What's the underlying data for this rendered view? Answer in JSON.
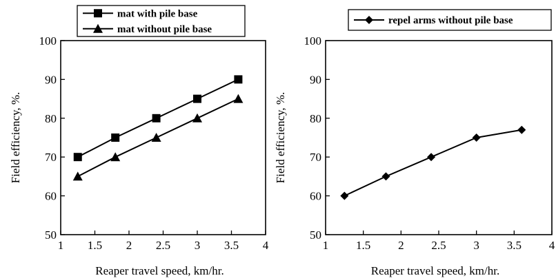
{
  "chart_data": [
    {
      "type": "line",
      "title": "",
      "xlabel": "Reaper travel speed, km/hr.",
      "ylabel": "Field efficiency, %.",
      "xlim": [
        1,
        4
      ],
      "ylim": [
        50,
        100
      ],
      "xticks": [
        1,
        1.5,
        2,
        2.5,
        3,
        3.5,
        4
      ],
      "yticks": [
        50,
        60,
        70,
        80,
        90,
        100
      ],
      "xtick_labels": [
        "1",
        "1.5",
        "2",
        "2.5",
        "3",
        "3.5",
        "4"
      ],
      "ytick_labels": [
        "50",
        "60",
        "70",
        "80",
        "90",
        "100"
      ],
      "grid": false,
      "legend_position": "top",
      "x": [
        1.25,
        1.8,
        2.4,
        3.0,
        3.6
      ],
      "series": [
        {
          "name": "mat with pile base",
          "marker": "square",
          "values": [
            70,
            75,
            80,
            85,
            90
          ]
        },
        {
          "name": "mat without pile base",
          "marker": "triangle",
          "values": [
            65,
            70,
            75,
            80,
            85
          ]
        }
      ]
    },
    {
      "type": "line",
      "title": "",
      "xlabel": "Reaper travel speed, km/hr.",
      "ylabel": "Field efficiency, %.",
      "xlim": [
        1,
        4
      ],
      "ylim": [
        50,
        100
      ],
      "xticks": [
        1,
        1.5,
        2,
        2.5,
        3,
        3.5,
        4
      ],
      "yticks": [
        50,
        60,
        70,
        80,
        90,
        100
      ],
      "xtick_labels": [
        "1",
        "1.5",
        "2",
        "2.5",
        "3",
        "3.5",
        "4"
      ],
      "ytick_labels": [
        "50",
        "60",
        "70",
        "80",
        "90",
        "100"
      ],
      "grid": false,
      "legend_position": "top",
      "x": [
        1.25,
        1.8,
        2.4,
        3.0,
        3.6
      ],
      "series": [
        {
          "name": "repel arms without pile base",
          "marker": "diamond",
          "values": [
            60,
            65,
            70,
            75,
            77
          ]
        }
      ]
    }
  ]
}
